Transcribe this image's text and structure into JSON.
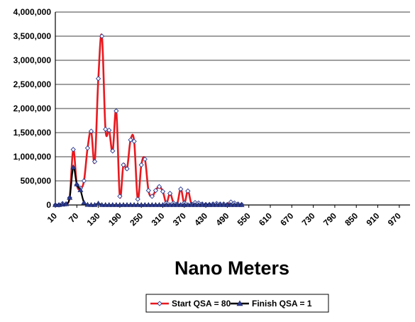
{
  "chart_data": {
    "type": "line",
    "title": "",
    "xlabel": "Nano Meters",
    "ylabel": "",
    "ylim": [
      0,
      4000000
    ],
    "xlim": [
      10,
      1000
    ],
    "yticks": [
      "0",
      "500,000",
      "1,000,000",
      "1,500,000",
      "2,000,000",
      "2,500,000",
      "3,000,000",
      "3,500,000",
      "4,000,000"
    ],
    "xticks": [
      "10",
      "70",
      "130",
      "190",
      "250",
      "310",
      "370",
      "430",
      "490",
      "550",
      "610",
      "670",
      "730",
      "790",
      "850",
      "910",
      "970"
    ],
    "grid": "horizontal",
    "legend": "bottom",
    "series": [
      {
        "name": "Start QSA = 80",
        "color": "#e8191f",
        "marker": "diamond",
        "points": [
          [
            10,
            0
          ],
          [
            20,
            0
          ],
          [
            30,
            30000
          ],
          [
            40,
            20000
          ],
          [
            50,
            150000
          ],
          [
            60,
            1150000
          ],
          [
            70,
            420000
          ],
          [
            80,
            350000
          ],
          [
            90,
            500000
          ],
          [
            100,
            1180000
          ],
          [
            110,
            1530000
          ],
          [
            120,
            900000
          ],
          [
            130,
            2620000
          ],
          [
            140,
            3500000
          ],
          [
            150,
            1570000
          ],
          [
            160,
            1550000
          ],
          [
            170,
            1120000
          ],
          [
            180,
            1950000
          ],
          [
            190,
            180000
          ],
          [
            200,
            830000
          ],
          [
            210,
            750000
          ],
          [
            220,
            1350000
          ],
          [
            230,
            1320000
          ],
          [
            240,
            120000
          ],
          [
            250,
            830000
          ],
          [
            260,
            950000
          ],
          [
            270,
            300000
          ],
          [
            280,
            180000
          ],
          [
            290,
            300000
          ],
          [
            300,
            380000
          ],
          [
            310,
            280000
          ],
          [
            320,
            40000
          ],
          [
            330,
            240000
          ],
          [
            340,
            40000
          ],
          [
            350,
            20000
          ],
          [
            360,
            330000
          ],
          [
            370,
            40000
          ],
          [
            380,
            290000
          ],
          [
            390,
            20000
          ],
          [
            400,
            50000
          ],
          [
            410,
            40000
          ],
          [
            420,
            20000
          ],
          [
            430,
            10000
          ],
          [
            440,
            10000
          ],
          [
            450,
            20000
          ],
          [
            460,
            30000
          ],
          [
            470,
            20000
          ],
          [
            480,
            20000
          ],
          [
            490,
            10000
          ],
          [
            500,
            60000
          ],
          [
            510,
            40000
          ],
          [
            520,
            20000
          ],
          [
            530,
            10000
          ]
        ]
      },
      {
        "name": "Finish QSA = 1",
        "color": "#000000",
        "marker": "triangle",
        "points": [
          [
            10,
            0
          ],
          [
            20,
            0
          ],
          [
            30,
            10000
          ],
          [
            40,
            20000
          ],
          [
            50,
            150000
          ],
          [
            60,
            780000
          ],
          [
            70,
            430000
          ],
          [
            80,
            310000
          ],
          [
            90,
            50000
          ],
          [
            100,
            5000
          ],
          [
            110,
            0
          ],
          [
            120,
            0
          ],
          [
            130,
            30000
          ],
          [
            140,
            0
          ],
          [
            150,
            0
          ],
          [
            160,
            0
          ],
          [
            170,
            0
          ],
          [
            180,
            0
          ],
          [
            190,
            0
          ],
          [
            200,
            0
          ],
          [
            210,
            0
          ],
          [
            220,
            0
          ],
          [
            230,
            0
          ],
          [
            240,
            0
          ],
          [
            250,
            0
          ],
          [
            260,
            0
          ],
          [
            270,
            0
          ],
          [
            280,
            0
          ],
          [
            290,
            0
          ],
          [
            300,
            0
          ],
          [
            310,
            0
          ],
          [
            320,
            0
          ],
          [
            330,
            0
          ],
          [
            340,
            0
          ],
          [
            350,
            0
          ],
          [
            360,
            0
          ],
          [
            370,
            0
          ],
          [
            380,
            0
          ],
          [
            390,
            0
          ],
          [
            400,
            0
          ],
          [
            410,
            0
          ],
          [
            420,
            0
          ],
          [
            430,
            0
          ],
          [
            440,
            0
          ],
          [
            450,
            0
          ],
          [
            460,
            0
          ],
          [
            470,
            0
          ],
          [
            480,
            0
          ],
          [
            490,
            0
          ],
          [
            500,
            0
          ],
          [
            510,
            0
          ],
          [
            520,
            0
          ],
          [
            530,
            0
          ]
        ]
      }
    ]
  }
}
